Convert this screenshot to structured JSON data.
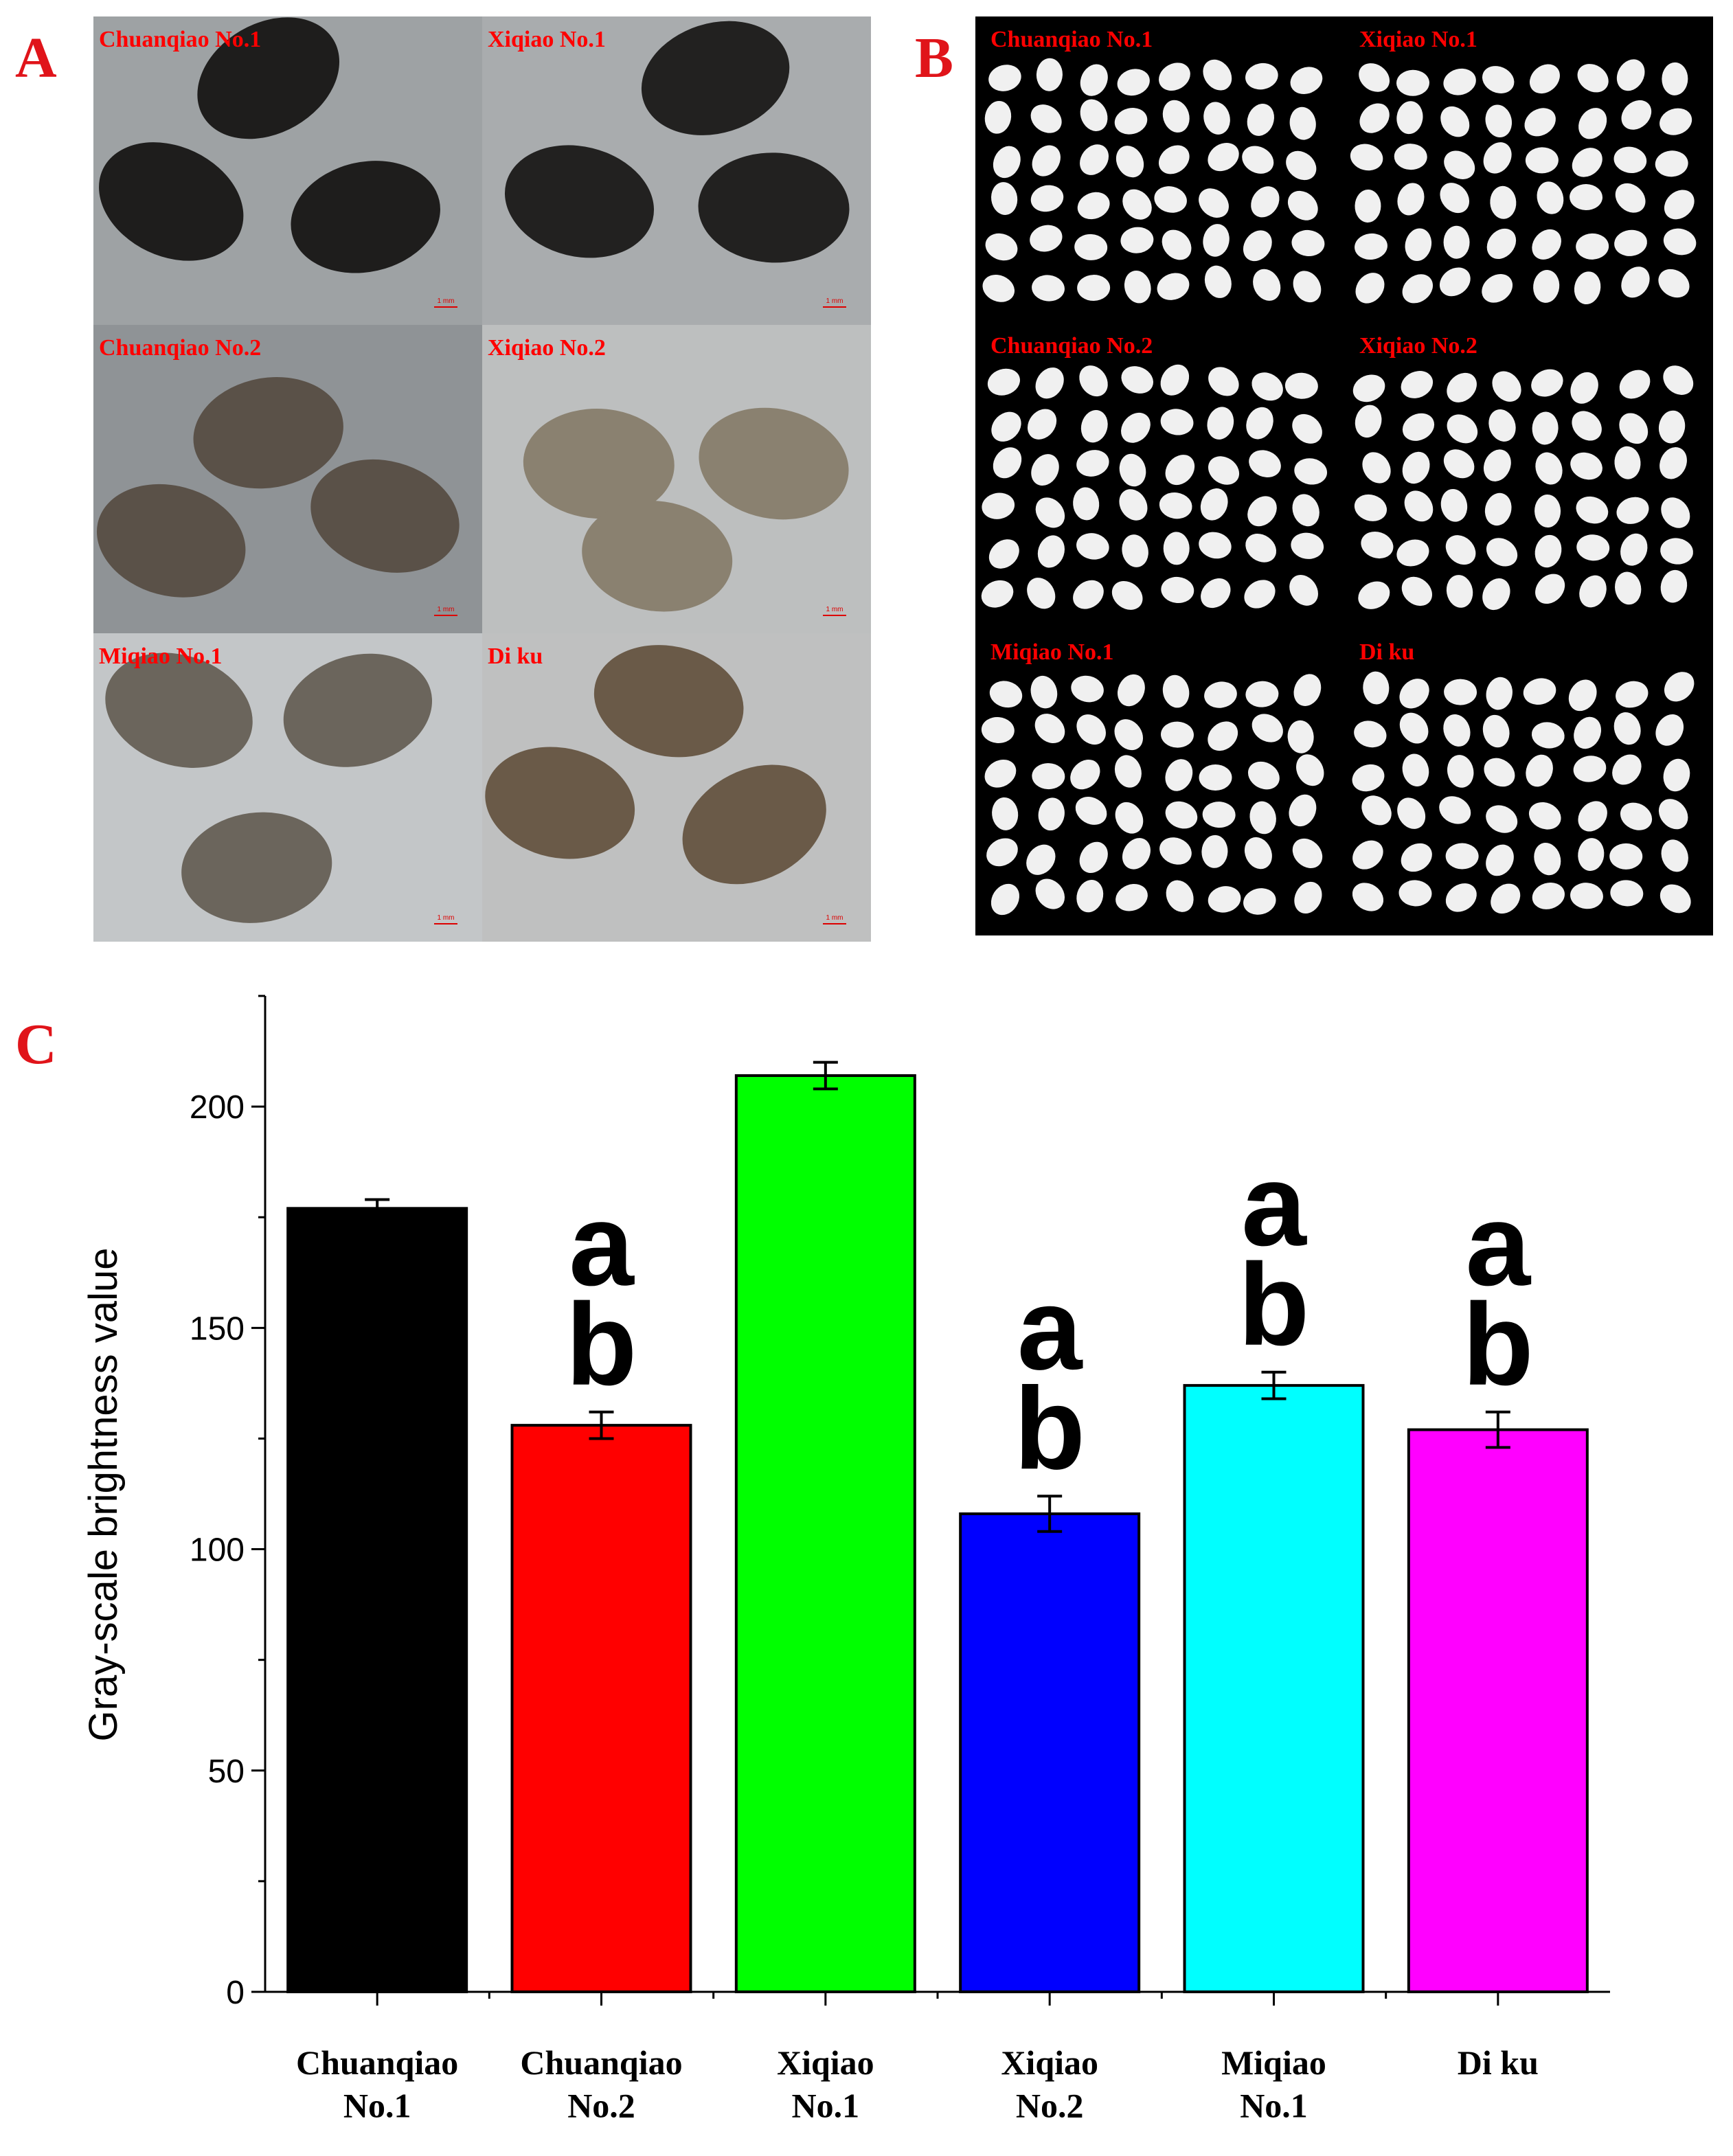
{
  "panels": {
    "A": {
      "label": "A",
      "captions": [
        "Chuanqiao No.1",
        "Xiqiao No.1",
        "Chuanqiao No.2",
        "Xiqiao No.2",
        "Miqiao No.1",
        "Di ku"
      ],
      "scale_bar": "1 mm"
    },
    "B": {
      "label": "B",
      "captions": [
        "Chuanqiao No.1",
        "Xiqiao No.1",
        "Chuanqiao No.2",
        "Xiqiao No.2",
        "Miqiao No.1",
        "Di ku"
      ]
    }
  },
  "chart_data": {
    "type": "bar",
    "panel_label": "C",
    "categories": [
      "Chuanqiao\nNo.1",
      "Chuanqiao\nNo.2",
      "Xiqiao\nNo.1",
      "Xiqiao\nNo.2",
      "Miqiao\nNo.1",
      "Di ku"
    ],
    "values": [
      177,
      128,
      207,
      108,
      137,
      127
    ],
    "errors": [
      2,
      3,
      3,
      4,
      3,
      4
    ],
    "colors": [
      "#000000",
      "#ff0000",
      "#00ff00",
      "#0000ff",
      "#00ffff",
      "#ff00ff"
    ],
    "letters": [
      null,
      [
        "a",
        "b"
      ],
      null,
      [
        "a",
        "b"
      ],
      [
        "a",
        "b"
      ],
      [
        "a",
        "b"
      ]
    ],
    "y_label": "Gray-scale brightness value",
    "ylim": [
      0,
      225
    ],
    "yticks": [
      0,
      50,
      100,
      150,
      200
    ],
    "minor_yticks": [
      25,
      75,
      125,
      175,
      225
    ]
  }
}
